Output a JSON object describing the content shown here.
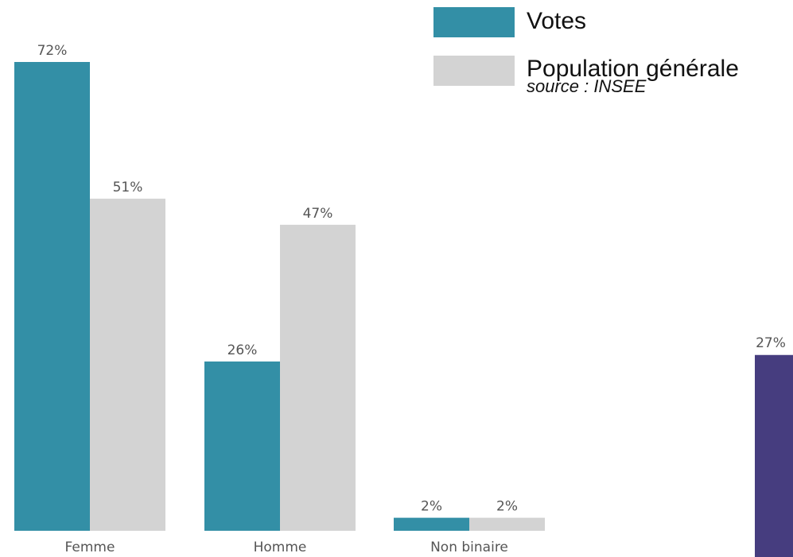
{
  "chart_data": [
    {
      "type": "bar",
      "categories": [
        "Femme",
        "Homme",
        "Non binaire"
      ],
      "series": [
        {
          "name": "Votes",
          "values": [
            72,
            26,
            2
          ],
          "color": "#338fa6"
        },
        {
          "name": "Population générale",
          "values": [
            51,
            47,
            2
          ],
          "color": "#d3d3d3"
        }
      ],
      "value_suffix": "%",
      "ylim": [
        0,
        72
      ],
      "grid": false
    },
    {
      "type": "bar",
      "categories": [
        ""
      ],
      "series": [
        {
          "values": [
            27
          ],
          "color": "#463d7f"
        }
      ],
      "value_suffix": "%",
      "ylim": [
        0,
        72
      ],
      "grid": false
    }
  ],
  "legend": {
    "items": [
      {
        "label": "Votes",
        "color": "#338fa6"
      },
      {
        "label": "Population générale",
        "color": "#d3d3d3"
      }
    ],
    "note": "source : INSEE",
    "placement": "top-right"
  }
}
